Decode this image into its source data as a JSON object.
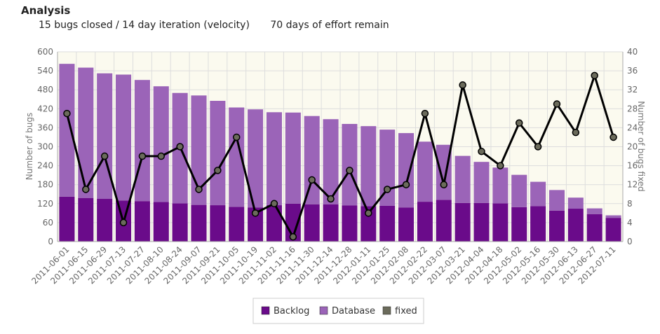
{
  "page": {
    "title": "Analysis",
    "velocity_text": "15 bugs closed / 14 day iteration (velocity)",
    "remaining_text": "70 days of effort remain"
  },
  "colors": {
    "backlog": "#6a0b8a",
    "database": "#9b64b8",
    "fixed_line": "#000000",
    "fixed_marker": "#6b6b5b",
    "plot_bg": "#fbfaef",
    "grid": "#dddddd"
  },
  "chart_data": {
    "type": "bar",
    "stacked": true,
    "categories": [
      "2011-06-01",
      "2011-06-15",
      "2011-06-29",
      "2011-07-13",
      "2011-07-27",
      "2011-08-10",
      "2011-08-24",
      "2011-09-07",
      "2011-09-21",
      "2011-10-05",
      "2011-10-19",
      "2011-11-02",
      "2011-11-16",
      "2011-11-30",
      "2011-12-14",
      "2011-12-28",
      "2012-01-11",
      "2012-01-25",
      "2012-02-08",
      "2012-02-22",
      "2012-03-07",
      "2012-03-21",
      "2012-04-04",
      "2012-04-18",
      "2012-05-02",
      "2012-05-16",
      "2012-05-30",
      "2012-06-13",
      "2012-06-27",
      "2012-07-11"
    ],
    "series": [
      {
        "name": "Backlog",
        "axis": "left",
        "kind": "bar",
        "values": [
          142,
          138,
          135,
          130,
          128,
          125,
          121,
          116,
          115,
          110,
          108,
          115,
          120,
          118,
          118,
          114,
          112,
          113,
          108,
          126,
          132,
          122,
          122,
          121,
          109,
          112,
          98,
          104,
          87,
          75
        ]
      },
      {
        "name": "Database",
        "axis": "left",
        "kind": "bar",
        "values": [
          420,
          412,
          397,
          398,
          383,
          366,
          349,
          346,
          330,
          314,
          310,
          294,
          288,
          279,
          269,
          258,
          253,
          241,
          235,
          190,
          174,
          149,
          130,
          113,
          102,
          77,
          65,
          35,
          18,
          8
        ]
      },
      {
        "name": "fixed",
        "axis": "right",
        "kind": "line",
        "values": [
          27,
          11,
          18,
          4,
          18,
          18,
          20,
          11,
          15,
          22,
          6,
          8,
          1,
          13,
          9,
          15,
          6,
          11,
          12,
          27,
          12,
          33,
          19,
          16,
          25,
          20,
          29,
          23,
          35,
          22
        ]
      }
    ],
    "ylabel": "Number of bugs",
    "y2label": "Number of bugs fixed",
    "ylim": [
      0,
      600
    ],
    "yticks": [
      "0",
      "60",
      "120",
      "180",
      "240",
      "300",
      "360",
      "420",
      "480",
      "540",
      "600"
    ],
    "y2lim": [
      0,
      40
    ],
    "y2ticks": [
      "0",
      "4",
      "8",
      "12",
      "16",
      "20",
      "24",
      "28",
      "32",
      "36",
      "40"
    ],
    "grid": true,
    "legend_position": "bottom-center"
  }
}
